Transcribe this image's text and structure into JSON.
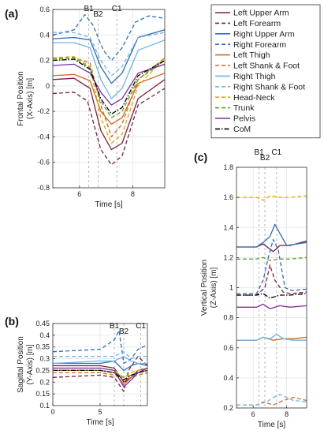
{
  "legend": [
    {
      "name": "Left Upper Arm",
      "color": "#7b1f3f",
      "dash": "solid"
    },
    {
      "name": "Left Forearm",
      "color": "#7b1f3f",
      "dash": "dashed"
    },
    {
      "name": "Right Upper Arm",
      "color": "#2f6db5",
      "dash": "solid"
    },
    {
      "name": "Right Forearm",
      "color": "#2f6db5",
      "dash": "dashed"
    },
    {
      "name": "Left Thigh",
      "color": "#d2691e",
      "dash": "solid"
    },
    {
      "name": "Left Shank & Foot",
      "color": "#d2691e",
      "dash": "dashed"
    },
    {
      "name": "Right Thigh",
      "color": "#6fb3e8",
      "dash": "solid"
    },
    {
      "name": "Right Shank & Foot",
      "color": "#6fb3e8",
      "dash": "dashed"
    },
    {
      "name": "Head-Neck",
      "color": "#e0a800",
      "dash": "dashed"
    },
    {
      "name": "Trunk",
      "color": "#5aa02c",
      "dash": "dashed"
    },
    {
      "name": "Pelvis",
      "color": "#7b2f9e",
      "dash": "solid"
    },
    {
      "name": "CoM",
      "color": "#000000",
      "dash": "dashdot"
    }
  ],
  "chart_data": [
    {
      "panel": "(a)",
      "type": "line",
      "xlabel": "Time [s]",
      "ylabel_lines": [
        "Frontal Position",
        "(X-Axis) [m]"
      ],
      "xlim": [
        5,
        9.2
      ],
      "ylim": [
        -0.8,
        0.6
      ],
      "xticks": [
        6,
        8
      ],
      "yticks": [
        -0.8,
        -0.6,
        -0.4,
        -0.2,
        0,
        0.2,
        0.4,
        0.6
      ],
      "events": [
        {
          "label": "B1",
          "x": 6.35
        },
        {
          "label": "B2",
          "x": 6.7
        },
        {
          "label": "C1",
          "x": 7.4
        }
      ],
      "series": [
        {
          "name": "Left Upper Arm",
          "x": [
            5,
            5.8,
            6.4,
            6.8,
            7.2,
            7.6,
            8.2,
            9.2
          ],
          "y": [
            0.05,
            0.06,
            -0.02,
            -0.35,
            -0.5,
            -0.45,
            -0.1,
            0.05
          ]
        },
        {
          "name": "Left Forearm",
          "x": [
            5,
            5.8,
            6.3,
            6.8,
            7.2,
            7.6,
            8.2,
            9.2
          ],
          "y": [
            -0.06,
            -0.05,
            -0.12,
            -0.5,
            -0.62,
            -0.55,
            -0.15,
            -0.02
          ]
        },
        {
          "name": "Right Upper Arm",
          "x": [
            5,
            5.8,
            6.4,
            6.8,
            7.2,
            7.6,
            8.2,
            9.2
          ],
          "y": [
            0.37,
            0.38,
            0.36,
            0.15,
            0.02,
            0.1,
            0.38,
            0.44
          ]
        },
        {
          "name": "Right Forearm",
          "x": [
            5,
            5.8,
            6.2,
            6.5,
            6.9,
            7.2,
            7.6,
            8.1,
            8.6,
            9.2
          ],
          "y": [
            0.4,
            0.44,
            0.56,
            0.48,
            0.28,
            0.2,
            0.3,
            0.5,
            0.55,
            0.53
          ]
        },
        {
          "name": "Left Thigh",
          "x": [
            5,
            5.8,
            6.4,
            6.8,
            7.2,
            7.6,
            8.2,
            9.2
          ],
          "y": [
            0.08,
            0.09,
            0.04,
            -0.2,
            -0.3,
            -0.25,
            0.02,
            0.1
          ]
        },
        {
          "name": "Left Shank & Foot",
          "x": [
            5,
            5.8,
            6.4,
            6.8,
            7.2,
            7.6,
            8.2,
            9.2
          ],
          "y": [
            0.22,
            0.22,
            0.18,
            -0.15,
            -0.4,
            -0.3,
            0.05,
            0.22
          ]
        },
        {
          "name": "Right Thigh",
          "x": [
            5,
            5.8,
            6.4,
            6.8,
            7.2,
            7.6,
            8.2,
            9.2
          ],
          "y": [
            0.34,
            0.34,
            0.3,
            0.05,
            -0.1,
            -0.02,
            0.28,
            0.36
          ]
        },
        {
          "name": "Right Shank & Foot",
          "x": [
            5,
            5.8,
            6.4,
            6.8,
            7.2,
            7.6,
            8.2,
            9.2
          ],
          "y": [
            0.42,
            0.42,
            0.38,
            0.2,
            0.08,
            0.15,
            0.38,
            0.42
          ]
        },
        {
          "name": "Head-Neck",
          "x": [
            5,
            5.8,
            6.4,
            6.8,
            7.2,
            7.6,
            8.2,
            9.2
          ],
          "y": [
            0.22,
            0.23,
            0.15,
            -0.25,
            -0.45,
            -0.38,
            0.0,
            0.22
          ]
        },
        {
          "name": "Trunk",
          "x": [
            5,
            5.8,
            6.4,
            6.8,
            7.2,
            7.6,
            8.2,
            9.2
          ],
          "y": [
            0.21,
            0.22,
            0.14,
            -0.12,
            -0.25,
            -0.2,
            0.05,
            0.2
          ]
        },
        {
          "name": "Pelvis",
          "x": [
            5,
            5.8,
            6.4,
            6.8,
            7.2,
            7.6,
            8.2,
            9.2
          ],
          "y": [
            0.16,
            0.17,
            0.1,
            -0.05,
            -0.15,
            -0.1,
            0.1,
            0.17
          ]
        },
        {
          "name": "CoM",
          "x": [
            5,
            5.8,
            6.4,
            6.8,
            7.2,
            7.6,
            8.2,
            9.2
          ],
          "y": [
            0.2,
            0.21,
            0.13,
            -0.1,
            -0.22,
            -0.17,
            0.08,
            0.2
          ]
        }
      ]
    },
    {
      "panel": "(b)",
      "type": "line",
      "xlabel": "Time [s]",
      "ylabel_lines": [
        "Sagittal Position",
        "(Y-Axis) [m]"
      ],
      "xlim": [
        0,
        10
      ],
      "ylim": [
        0.1,
        0.45
      ],
      "xticks": [
        0,
        5
      ],
      "yticks": [
        0.1,
        0.15,
        0.2,
        0.25,
        0.3,
        0.35,
        0.4,
        0.45
      ],
      "events": [
        {
          "label": "B1",
          "x": 6.5
        },
        {
          "label": "B2",
          "x": 7.5
        },
        {
          "label": "C1",
          "x": 9.3
        }
      ],
      "series": [
        {
          "name": "Left Upper Arm",
          "x": [
            0,
            5,
            6.5,
            7.5,
            8.3,
            9,
            10
          ],
          "y": [
            0.27,
            0.27,
            0.26,
            0.2,
            0.22,
            0.25,
            0.26
          ]
        },
        {
          "name": "Left Forearm",
          "x": [
            0,
            5,
            6.5,
            7.5,
            8,
            9,
            10
          ],
          "y": [
            0.22,
            0.23,
            0.22,
            0.16,
            0.25,
            0.31,
            0.27
          ]
        },
        {
          "name": "Right Upper Arm",
          "x": [
            0,
            5,
            6.5,
            7.5,
            8.3,
            9,
            10
          ],
          "y": [
            0.28,
            0.28,
            0.29,
            0.25,
            0.27,
            0.28,
            0.27
          ]
        },
        {
          "name": "Right Forearm",
          "x": [
            0,
            5,
            6.5,
            7.0,
            7.5,
            8.3,
            9,
            10
          ],
          "y": [
            0.33,
            0.34,
            0.38,
            0.42,
            0.28,
            0.3,
            0.34,
            0.36
          ]
        },
        {
          "name": "Left Thigh",
          "x": [
            0,
            5,
            6.5,
            7.5,
            8.3,
            9,
            10
          ],
          "y": [
            0.25,
            0.25,
            0.24,
            0.19,
            0.22,
            0.24,
            0.25
          ]
        },
        {
          "name": "Left Shank & Foot",
          "x": [
            0,
            5,
            6.5,
            7.5,
            8.3,
            9,
            10
          ],
          "y": [
            0.24,
            0.24,
            0.23,
            0.21,
            0.22,
            0.23,
            0.24
          ]
        },
        {
          "name": "Right Thigh",
          "x": [
            0,
            5,
            6.5,
            7.5,
            8.3,
            9,
            10
          ],
          "y": [
            0.28,
            0.29,
            0.29,
            0.31,
            0.29,
            0.28,
            0.28
          ]
        },
        {
          "name": "Right Shank & Foot",
          "x": [
            0,
            5,
            6.5,
            7.5,
            8.3,
            9,
            10
          ],
          "y": [
            0.31,
            0.31,
            0.31,
            0.33,
            0.3,
            0.31,
            0.31
          ]
        },
        {
          "name": "Head-Neck",
          "x": [
            0,
            5,
            6.5,
            7.5,
            8.3,
            9,
            10
          ],
          "y": [
            0.26,
            0.26,
            0.25,
            0.22,
            0.24,
            0.25,
            0.26
          ]
        },
        {
          "name": "Trunk",
          "x": [
            0,
            5,
            6.5,
            7.5,
            8.3,
            9,
            10
          ],
          "y": [
            0.25,
            0.25,
            0.24,
            0.22,
            0.23,
            0.24,
            0.25
          ]
        },
        {
          "name": "Pelvis",
          "x": [
            0,
            5,
            6.5,
            7.5,
            8.3,
            9,
            10
          ],
          "y": [
            0.26,
            0.26,
            0.25,
            0.18,
            0.21,
            0.24,
            0.26
          ]
        },
        {
          "name": "CoM",
          "x": [
            0,
            5,
            6.5,
            7.5,
            8.3,
            9,
            10
          ],
          "y": [
            0.25,
            0.25,
            0.24,
            0.21,
            0.23,
            0.24,
            0.25
          ]
        }
      ]
    },
    {
      "panel": "(c)",
      "type": "line",
      "xlabel": "Time [s]",
      "ylabel_lines": [
        "Vertical Position",
        "(Z-Axis) [m]"
      ],
      "xlim": [
        5,
        9.2
      ],
      "ylim": [
        0.2,
        1.8
      ],
      "xticks": [
        6,
        8
      ],
      "yticks": [
        0.2,
        0.4,
        0.6,
        0.8,
        1,
        1.2,
        1.4,
        1.6,
        1.8
      ],
      "events": [
        {
          "label": "B1",
          "x": 6.35
        },
        {
          "label": "B2",
          "x": 6.7
        },
        {
          "label": "C1",
          "x": 7.4
        }
      ],
      "series": [
        {
          "name": "Left Upper Arm",
          "x": [
            5,
            6.2,
            6.6,
            7.2,
            7.6,
            8.2,
            9.2
          ],
          "y": [
            1.27,
            1.27,
            1.29,
            1.24,
            1.28,
            1.28,
            1.31
          ]
        },
        {
          "name": "Left Forearm",
          "x": [
            5,
            6.2,
            6.7,
            7.0,
            7.3,
            7.8,
            8.2,
            9.2
          ],
          "y": [
            0.95,
            0.95,
            1.0,
            1.15,
            1.05,
            0.97,
            0.96,
            0.97
          ]
        },
        {
          "name": "Right Upper Arm",
          "x": [
            5,
            6.2,
            6.6,
            7.0,
            7.3,
            7.6,
            8.0,
            9.2
          ],
          "y": [
            1.27,
            1.27,
            1.3,
            1.34,
            1.42,
            1.36,
            1.28,
            1.3
          ]
        },
        {
          "name": "Right Forearm",
          "x": [
            5,
            6.2,
            6.6,
            6.9,
            7.2,
            7.5,
            7.9,
            8.3,
            9.2
          ],
          "y": [
            0.96,
            0.96,
            1.05,
            1.2,
            1.32,
            1.25,
            1.0,
            0.98,
            0.99
          ]
        },
        {
          "name": "Left Thigh",
          "x": [
            5,
            6.2,
            6.6,
            7.2,
            7.8,
            8.4,
            9.2
          ],
          "y": [
            0.65,
            0.65,
            0.67,
            0.65,
            0.66,
            0.66,
            0.67
          ]
        },
        {
          "name": "Left Shank & Foot",
          "x": [
            5,
            6.2,
            6.6,
            7.2,
            7.8,
            8.4,
            9.2
          ],
          "y": [
            0.22,
            0.22,
            0.24,
            0.22,
            0.25,
            0.27,
            0.25
          ]
        },
        {
          "name": "Right Thigh",
          "x": [
            5,
            6.2,
            6.6,
            7.0,
            7.4,
            7.8,
            8.4,
            9.2
          ],
          "y": [
            0.65,
            0.65,
            0.67,
            0.66,
            0.69,
            0.66,
            0.65,
            0.65
          ]
        },
        {
          "name": "Right Shank & Foot",
          "x": [
            5,
            6.2,
            6.8,
            7.2,
            7.6,
            8.4,
            9.2
          ],
          "y": [
            0.22,
            0.22,
            0.24,
            0.27,
            0.29,
            0.25,
            0.24
          ]
        },
        {
          "name": "Head-Neck",
          "x": [
            5,
            6.2,
            6.6,
            7.0,
            7.6,
            8.2,
            9.2
          ],
          "y": [
            1.6,
            1.6,
            1.58,
            1.61,
            1.6,
            1.6,
            1.61
          ]
        },
        {
          "name": "Trunk",
          "x": [
            5,
            6.2,
            6.6,
            7.0,
            7.6,
            8.2,
            9.2
          ],
          "y": [
            1.19,
            1.19,
            1.2,
            1.18,
            1.19,
            1.19,
            1.2
          ]
        },
        {
          "name": "Pelvis",
          "x": [
            5,
            6.2,
            6.6,
            7.0,
            7.6,
            8.2,
            9.2
          ],
          "y": [
            0.87,
            0.87,
            0.89,
            0.86,
            0.88,
            0.87,
            0.88
          ]
        },
        {
          "name": "CoM",
          "x": [
            5,
            6.2,
            6.6,
            7.0,
            7.6,
            8.2,
            9.2
          ],
          "y": [
            0.95,
            0.95,
            0.96,
            0.93,
            0.95,
            0.95,
            0.96
          ]
        }
      ]
    }
  ]
}
